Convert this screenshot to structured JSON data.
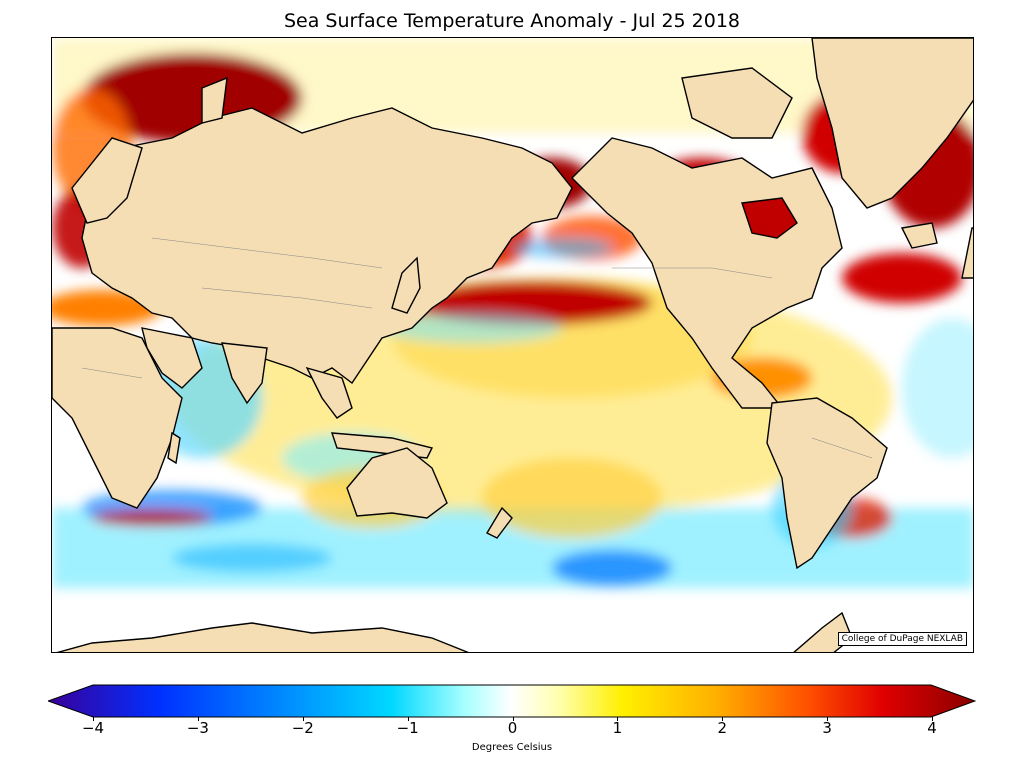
{
  "title": "Sea Surface Temperature Anomaly - Jul 25 2018",
  "credit": "College of DuPage NEXLAB",
  "colorbar": {
    "label": "Degrees Celsius",
    "min": -4,
    "max": 4,
    "ticks": [
      "−4",
      "−3",
      "−2",
      "−1",
      "0",
      "1",
      "2",
      "3",
      "4"
    ],
    "tick_values": [
      -4,
      -3,
      -2,
      -1,
      0,
      1,
      2,
      3,
      4
    ],
    "colors": [
      "#3a0099",
      "#0040ff",
      "#0090ff",
      "#00d0ff",
      "#80ffff",
      "#ffffff",
      "#ffffa0",
      "#ffe000",
      "#ffa000",
      "#ff5000",
      "#e00000",
      "#8a0000"
    ]
  },
  "map": {
    "land_color": "#f5deb3",
    "ocean_color": "#ffffff"
  }
}
